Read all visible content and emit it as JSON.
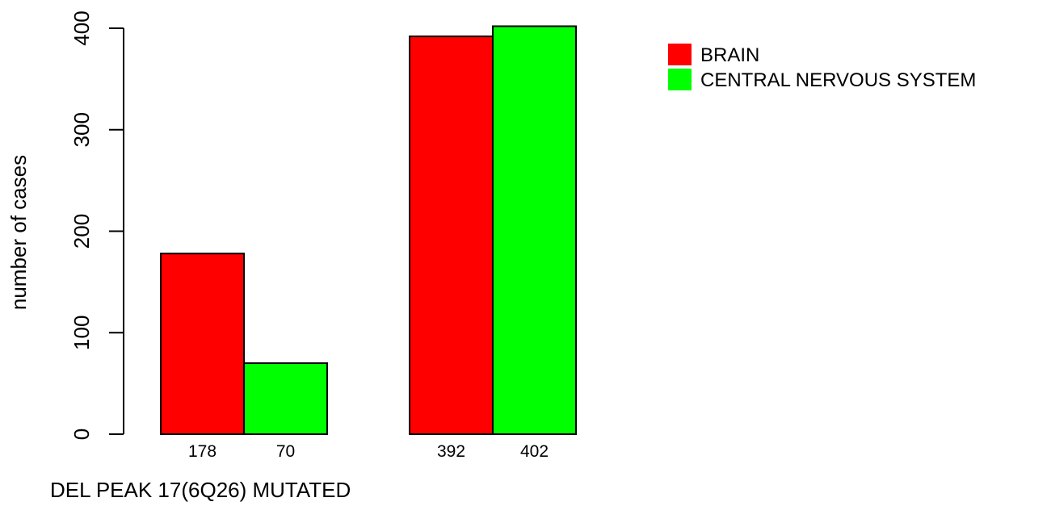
{
  "chart_data": {
    "type": "bar",
    "title": "",
    "xlabel": "DEL PEAK 17(6Q26) MUTATED",
    "ylabel": "number of cases",
    "ylim": [
      0,
      400
    ],
    "yticks": [
      0,
      100,
      200,
      300,
      400
    ],
    "groups": [
      "",
      ""
    ],
    "series": [
      {
        "name": "BRAIN",
        "color": "#ff0000",
        "values": [
          178,
          392
        ]
      },
      {
        "name": "CENTRAL NERVOUS SYSTEM",
        "color": "#00ff00",
        "values": [
          70,
          402
        ]
      }
    ],
    "bar_labels": [
      [
        "178",
        "70"
      ],
      [
        "392",
        "402"
      ]
    ],
    "grid": false,
    "legend_position": "top-right"
  }
}
